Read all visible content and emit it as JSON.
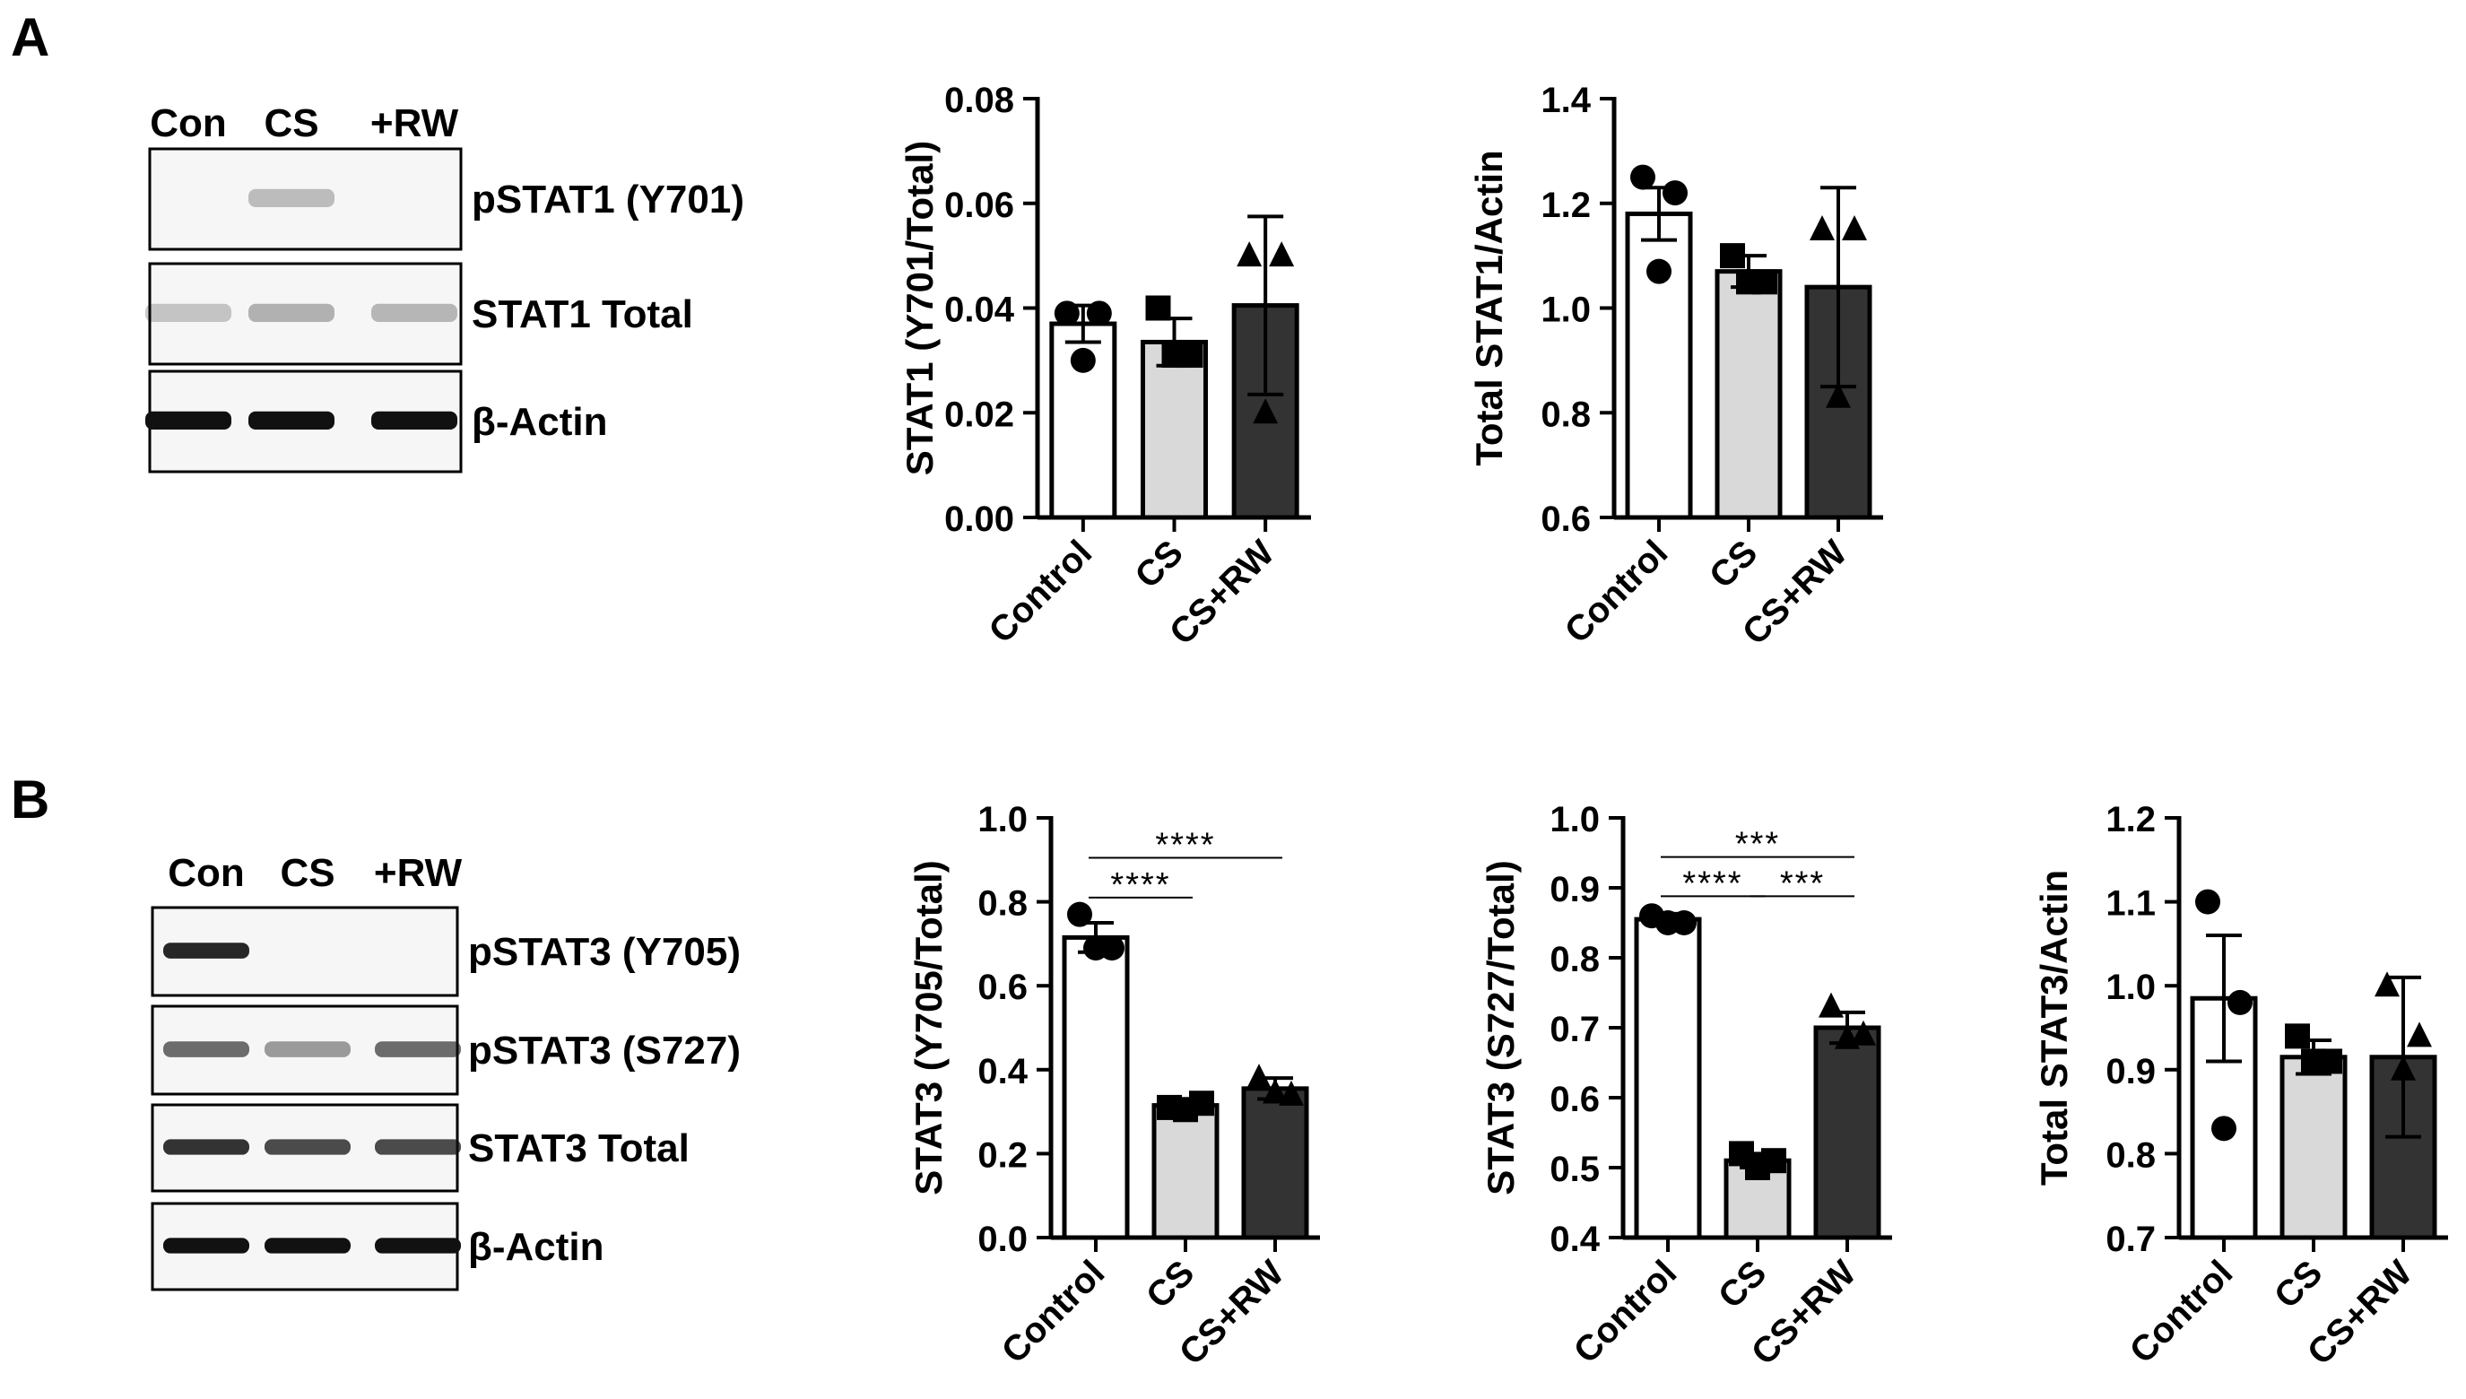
{
  "colors": {
    "control": "#ffffff",
    "cs": "#d9d9d9",
    "csrw": "#333333",
    "ink": "#000000",
    "blot_bg": "#f6f6f6",
    "band": "#111111"
  },
  "panels": {
    "a": {
      "letter": "A",
      "blot": {
        "lanes": [
          "Con",
          "CS",
          "+RW"
        ],
        "rows": [
          {
            "label": "pSTAT1 (Y701)",
            "bands": [
              0.0,
              0.25,
              0.0
            ]
          },
          {
            "label": "STAT1 Total",
            "bands": [
              0.22,
              0.3,
              0.28
            ]
          },
          {
            "label": "β-Actin",
            "bands": [
              1.0,
              1.0,
              1.0
            ]
          }
        ]
      }
    },
    "b": {
      "letter": "B",
      "blot": {
        "lanes": [
          "Con",
          "CS",
          "+RW"
        ],
        "rows": [
          {
            "label": "pSTAT3 (Y705)",
            "bands": [
              0.9,
              0.0,
              0.0
            ]
          },
          {
            "label": "pSTAT3 (S727)",
            "bands": [
              0.6,
              0.4,
              0.6
            ]
          },
          {
            "label": "STAT3 Total",
            "bands": [
              0.85,
              0.75,
              0.75
            ]
          },
          {
            "label": "β-Actin",
            "bands": [
              1.0,
              1.0,
              1.0
            ]
          }
        ]
      }
    }
  },
  "chart_data": [
    {
      "id": "a1",
      "type": "bar",
      "ylabel": "STAT1 (Y701/Total)",
      "categories": [
        "Control",
        "CS",
        "CS+RW"
      ],
      "values": [
        0.037,
        0.0335,
        0.0405
      ],
      "errors": [
        0.0035,
        0.0045,
        0.017
      ],
      "points": [
        [
          0.039,
          0.039,
          0.03
        ],
        [
          0.04,
          0.031,
          0.031
        ],
        [
          0.05,
          0.05,
          0.02
        ]
      ],
      "markers": [
        "circle",
        "square",
        "triangle"
      ],
      "ylim": [
        0,
        0.08
      ],
      "yticks": [
        0.0,
        0.02,
        0.04,
        0.06,
        0.08
      ],
      "ytick_labels": [
        "0.00",
        "0.02",
        "0.04",
        "0.06",
        "0.08"
      ],
      "significance": []
    },
    {
      "id": "a2",
      "type": "bar",
      "ylabel": "Total STAT1/Actin",
      "categories": [
        "Control",
        "CS",
        "CS+RW"
      ],
      "values": [
        1.18,
        1.07,
        1.04
      ],
      "errors": [
        0.05,
        0.03,
        0.19
      ],
      "points": [
        [
          1.25,
          1.22,
          1.07
        ],
        [
          1.1,
          1.05,
          1.05
        ],
        [
          1.15,
          1.15,
          0.83
        ]
      ],
      "markers": [
        "circle",
        "square",
        "triangle"
      ],
      "ylim": [
        0.6,
        1.4
      ],
      "yticks": [
        0.6,
        0.8,
        1.0,
        1.2,
        1.4
      ],
      "ytick_labels": [
        "0.6",
        "0.8",
        "1.0",
        "1.2",
        "1.4"
      ],
      "significance": []
    },
    {
      "id": "b1",
      "type": "bar",
      "ylabel": "STAT3 (Y705/Total)",
      "categories": [
        "Control",
        "CS",
        "CS+RW"
      ],
      "values": [
        0.715,
        0.315,
        0.355
      ],
      "errors": [
        0.035,
        0.012,
        0.025
      ],
      "points": [
        [
          0.77,
          0.69,
          0.69
        ],
        [
          0.31,
          0.32,
          0.305
        ],
        [
          0.38,
          0.34,
          0.345
        ]
      ],
      "markers": [
        "circle",
        "square",
        "triangle"
      ],
      "ylim": [
        0,
        1.0
      ],
      "yticks": [
        0.0,
        0.2,
        0.4,
        0.6,
        0.8,
        1.0
      ],
      "ytick_labels": [
        "0.0",
        "0.2",
        "0.4",
        "0.6",
        "0.8",
        "1.0"
      ],
      "significance": [
        {
          "from": 0,
          "to": 1,
          "label": "****",
          "y": 0.81
        },
        {
          "from": 0,
          "to": 2,
          "label": "****",
          "y": 0.905
        }
      ]
    },
    {
      "id": "b2",
      "type": "bar",
      "ylabel": "STAT3 (S727/Total)",
      "categories": [
        "Control",
        "CS",
        "CS+RW"
      ],
      "values": [
        0.855,
        0.51,
        0.7
      ],
      "errors": [
        0.008,
        0.01,
        0.022
      ],
      "points": [
        [
          0.86,
          0.85,
          0.85
        ],
        [
          0.52,
          0.51,
          0.5
        ],
        [
          0.73,
          0.69,
          0.685
        ]
      ],
      "markers": [
        "circle",
        "square",
        "triangle"
      ],
      "ylim": [
        0.4,
        1.0
      ],
      "yticks": [
        0.4,
        0.5,
        0.6,
        0.7,
        0.8,
        0.9,
        1.0
      ],
      "ytick_labels": [
        "0.4",
        "0.5",
        "0.6",
        "0.7",
        "0.8",
        "0.9",
        "1.0"
      ],
      "significance": [
        {
          "from": 0,
          "to": 1,
          "label": "****",
          "y": 0.888
        },
        {
          "from": 1,
          "to": 2,
          "label": "***",
          "y": 0.888
        },
        {
          "from": 0,
          "to": 2,
          "label": "***",
          "y": 0.944
        }
      ]
    },
    {
      "id": "b3",
      "type": "bar",
      "ylabel": "Total STAT3/Actin",
      "categories": [
        "Control",
        "CS",
        "CS+RW"
      ],
      "values": [
        0.985,
        0.915,
        0.915
      ],
      "errors": [
        0.075,
        0.02,
        0.095
      ],
      "points": [
        [
          1.1,
          0.98,
          0.83
        ],
        [
          0.94,
          0.91,
          0.91
        ],
        [
          1.0,
          0.94,
          0.9
        ]
      ],
      "markers": [
        "circle",
        "square",
        "triangle"
      ],
      "ylim": [
        0.7,
        1.2
      ],
      "yticks": [
        0.7,
        0.8,
        0.9,
        1.0,
        1.1,
        1.2
      ],
      "ytick_labels": [
        "0.7",
        "0.8",
        "0.9",
        "1.0",
        "1.1",
        "1.2"
      ],
      "significance": []
    }
  ]
}
